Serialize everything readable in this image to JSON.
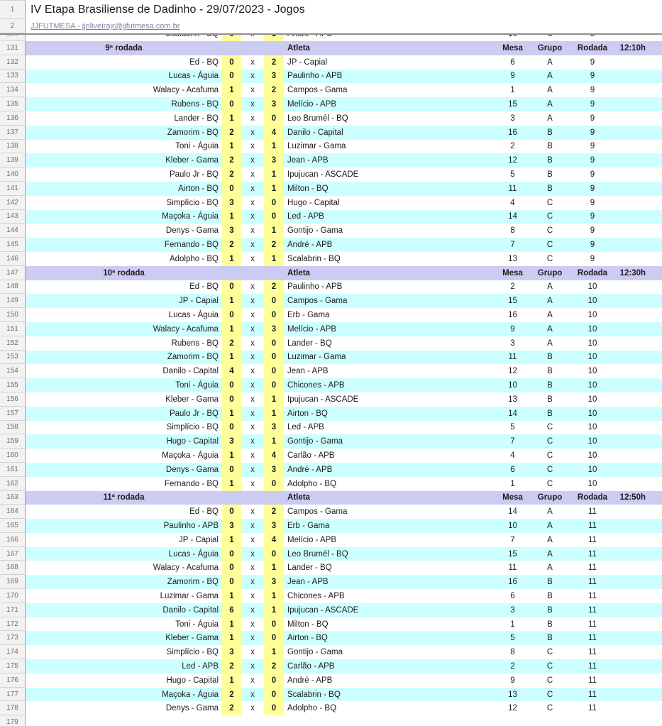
{
  "header": {
    "title": "IV Etapa Brasiliense de Dadinho - 29/07/2023 - Jogos",
    "link": "JJFUTMESA - jjoliveirajr@jjfutmesa.com.br",
    "row1_num": "1",
    "row2_num": "2"
  },
  "versus": "x",
  "col_headers": {
    "atleta": "Atleta",
    "mesa": "Mesa",
    "grupo": "Grupo",
    "rodada": "Rodada"
  },
  "partial_row": {
    "row": "130",
    "p1": "Scalabrin - BQ",
    "s1": "0",
    "s2": "1",
    "p2": "André - APB",
    "mesa": "10",
    "grupo": "C",
    "rodada": "8"
  },
  "last_row_num": "179",
  "colors": {
    "section_header_bg": "#ccccf2",
    "band_cyan": "#ccffff",
    "score_yellow": "#ffff99",
    "gutter_bg": "#f2f2f2",
    "link_text": "#7f7fa6"
  },
  "sections": [
    {
      "row_num": "131",
      "label": "9ª rodada",
      "time": "12:10h",
      "matches": [
        {
          "row": "132",
          "p1": "Ed - BQ",
          "s1": "0",
          "s2": "2",
          "p2": "JP - Capial",
          "mesa": "6",
          "grupo": "A",
          "rodada": "9"
        },
        {
          "row": "133",
          "p1": "Lucas - Águia",
          "s1": "0",
          "s2": "3",
          "p2": "Paulinho - APB",
          "mesa": "9",
          "grupo": "A",
          "rodada": "9"
        },
        {
          "row": "134",
          "p1": "Walacy - Acafuma",
          "s1": "1",
          "s2": "2",
          "p2": "Campos - Gama",
          "mesa": "1",
          "grupo": "A",
          "rodada": "9"
        },
        {
          "row": "135",
          "p1": "Rubens - BQ",
          "s1": "0",
          "s2": "3",
          "p2": "Melício - APB",
          "mesa": "15",
          "grupo": "A",
          "rodada": "9"
        },
        {
          "row": "136",
          "p1": "Lander - BQ",
          "s1": "1",
          "s2": "0",
          "p2": "Leo Brumél - BQ",
          "mesa": "3",
          "grupo": "A",
          "rodada": "9"
        },
        {
          "row": "137",
          "p1": "Zamorim - BQ",
          "s1": "2",
          "s2": "4",
          "p2": "Danilo - Capital",
          "mesa": "16",
          "grupo": "B",
          "rodada": "9"
        },
        {
          "row": "138",
          "p1": "Toni - Águia",
          "s1": "1",
          "s2": "1",
          "p2": "Luzimar - Gama",
          "mesa": "2",
          "grupo": "B",
          "rodada": "9"
        },
        {
          "row": "139",
          "p1": "Kleber - Gama",
          "s1": "2",
          "s2": "3",
          "p2": "Jean - APB",
          "mesa": "12",
          "grupo": "B",
          "rodada": "9"
        },
        {
          "row": "140",
          "p1": "Paulo Jr - BQ",
          "s1": "2",
          "s2": "1",
          "p2": "Ipujucan - ASCADE",
          "mesa": "5",
          "grupo": "B",
          "rodada": "9"
        },
        {
          "row": "141",
          "p1": "Airton - BQ",
          "s1": "0",
          "s2": "1",
          "p2": "Milton - BQ",
          "mesa": "11",
          "grupo": "B",
          "rodada": "9"
        },
        {
          "row": "142",
          "p1": "Simplício - BQ",
          "s1": "3",
          "s2": "0",
          "p2": "Hugo - Capital",
          "mesa": "4",
          "grupo": "C",
          "rodada": "9"
        },
        {
          "row": "143",
          "p1": "Maçoka - Águia",
          "s1": "1",
          "s2": "0",
          "p2": "Led - APB",
          "mesa": "14",
          "grupo": "C",
          "rodada": "9"
        },
        {
          "row": "144",
          "p1": "Denys - Gama",
          "s1": "3",
          "s2": "1",
          "p2": "Gontijo - Gama",
          "mesa": "8",
          "grupo": "C",
          "rodada": "9"
        },
        {
          "row": "145",
          "p1": "Fernando - BQ",
          "s1": "2",
          "s2": "2",
          "p2": "André - APB",
          "mesa": "7",
          "grupo": "C",
          "rodada": "9"
        },
        {
          "row": "146",
          "p1": "Adolpho - BQ",
          "s1": "1",
          "s2": "1",
          "p2": "Scalabrin - BQ",
          "mesa": "13",
          "grupo": "C",
          "rodada": "9"
        }
      ]
    },
    {
      "row_num": "147",
      "label": "10ª rodada",
      "time": "12:30h",
      "matches": [
        {
          "row": "148",
          "p1": "Ed - BQ",
          "s1": "0",
          "s2": "2",
          "p2": "Paulinho - APB",
          "mesa": "2",
          "grupo": "A",
          "rodada": "10"
        },
        {
          "row": "149",
          "p1": "JP - Capial",
          "s1": "1",
          "s2": "0",
          "p2": "Campos - Gama",
          "mesa": "15",
          "grupo": "A",
          "rodada": "10"
        },
        {
          "row": "150",
          "p1": "Lucas - Águia",
          "s1": "0",
          "s2": "0",
          "p2": "Erb - Gama",
          "mesa": "16",
          "grupo": "A",
          "rodada": "10"
        },
        {
          "row": "151",
          "p1": "Walacy - Acafuma",
          "s1": "1",
          "s2": "3",
          "p2": "Melício - APB",
          "mesa": "9",
          "grupo": "A",
          "rodada": "10"
        },
        {
          "row": "152",
          "p1": "Rubens - BQ",
          "s1": "2",
          "s2": "0",
          "p2": "Lander - BQ",
          "mesa": "3",
          "grupo": "A",
          "rodada": "10"
        },
        {
          "row": "153",
          "p1": "Zamorim - BQ",
          "s1": "1",
          "s2": "0",
          "p2": "Luzimar - Gama",
          "mesa": "11",
          "grupo": "B",
          "rodada": "10"
        },
        {
          "row": "154",
          "p1": "Danilo - Capital",
          "s1": "4",
          "s2": "0",
          "p2": "Jean - APB",
          "mesa": "12",
          "grupo": "B",
          "rodada": "10"
        },
        {
          "row": "155",
          "p1": "Toni - Águia",
          "s1": "0",
          "s2": "0",
          "p2": "Chicones - APB",
          "mesa": "10",
          "grupo": "B",
          "rodada": "10"
        },
        {
          "row": "156",
          "p1": "Kleber - Gama",
          "s1": "0",
          "s2": "1",
          "p2": "Ipujucan - ASCADE",
          "mesa": "13",
          "grupo": "B",
          "rodada": "10"
        },
        {
          "row": "157",
          "p1": "Paulo Jr - BQ",
          "s1": "1",
          "s2": "1",
          "p2": "Airton - BQ",
          "mesa": "14",
          "grupo": "B",
          "rodada": "10"
        },
        {
          "row": "158",
          "p1": "Simplício - BQ",
          "s1": "0",
          "s2": "3",
          "p2": "Led - APB",
          "mesa": "5",
          "grupo": "C",
          "rodada": "10"
        },
        {
          "row": "159",
          "p1": "Hugo - Capital",
          "s1": "3",
          "s2": "1",
          "p2": "Gontijo - Gama",
          "mesa": "7",
          "grupo": "C",
          "rodada": "10"
        },
        {
          "row": "160",
          "p1": "Maçoka - Águia",
          "s1": "1",
          "s2": "4",
          "p2": "Carlão - APB",
          "mesa": "4",
          "grupo": "C",
          "rodada": "10"
        },
        {
          "row": "161",
          "p1": "Denys - Gama",
          "s1": "0",
          "s2": "3",
          "p2": "André - APB",
          "mesa": "6",
          "grupo": "C",
          "rodada": "10"
        },
        {
          "row": "162",
          "p1": "Fernando - BQ",
          "s1": "1",
          "s2": "0",
          "p2": "Adolpho - BQ",
          "mesa": "1",
          "grupo": "C",
          "rodada": "10"
        }
      ]
    },
    {
      "row_num": "163",
      "label": "11ª rodada",
      "time": "12:50h",
      "matches": [
        {
          "row": "164",
          "p1": "Ed - BQ",
          "s1": "0",
          "s2": "2",
          "p2": "Campos - Gama",
          "mesa": "14",
          "grupo": "A",
          "rodada": "11"
        },
        {
          "row": "165",
          "p1": "Paulinho - APB",
          "s1": "3",
          "s2": "3",
          "p2": "Erb - Gama",
          "mesa": "10",
          "grupo": "A",
          "rodada": "11"
        },
        {
          "row": "166",
          "p1": "JP - Capial",
          "s1": "1",
          "s2": "4",
          "p2": "Melício - APB",
          "mesa": "7",
          "grupo": "A",
          "rodada": "11"
        },
        {
          "row": "167",
          "p1": "Lucas - Águia",
          "s1": "0",
          "s2": "0",
          "p2": "Leo Brumél - BQ",
          "mesa": "15",
          "grupo": "A",
          "rodada": "11"
        },
        {
          "row": "168",
          "p1": "Walacy - Acafuma",
          "s1": "0",
          "s2": "1",
          "p2": "Lander - BQ",
          "mesa": "11",
          "grupo": "A",
          "rodada": "11"
        },
        {
          "row": "169",
          "p1": "Zamorim - BQ",
          "s1": "0",
          "s2": "3",
          "p2": "Jean - APB",
          "mesa": "16",
          "grupo": "B",
          "rodada": "11"
        },
        {
          "row": "170",
          "p1": "Luzimar - Gama",
          "s1": "1",
          "s2": "1",
          "p2": "Chicones - APB",
          "mesa": "6",
          "grupo": "B",
          "rodada": "11"
        },
        {
          "row": "171",
          "p1": "Danilo - Capital",
          "s1": "6",
          "s2": "1",
          "p2": "Ipujucan - ASCADE",
          "mesa": "3",
          "grupo": "B",
          "rodada": "11"
        },
        {
          "row": "172",
          "p1": "Toni - Águia",
          "s1": "1",
          "s2": "0",
          "p2": "Milton - BQ",
          "mesa": "1",
          "grupo": "B",
          "rodada": "11"
        },
        {
          "row": "173",
          "p1": "Kleber - Gama",
          "s1": "1",
          "s2": "0",
          "p2": "Airton - BQ",
          "mesa": "5",
          "grupo": "B",
          "rodada": "11"
        },
        {
          "row": "174",
          "p1": "Simplício - BQ",
          "s1": "3",
          "s2": "1",
          "p2": "Gontijo - Gama",
          "mesa": "8",
          "grupo": "C",
          "rodada": "11"
        },
        {
          "row": "175",
          "p1": "Led - APB",
          "s1": "2",
          "s2": "2",
          "p2": "Carlão - APB",
          "mesa": "2",
          "grupo": "C",
          "rodada": "11"
        },
        {
          "row": "176",
          "p1": "Hugo - Capital",
          "s1": "1",
          "s2": "0",
          "p2": "André - APB",
          "mesa": "9",
          "grupo": "C",
          "rodada": "11"
        },
        {
          "row": "177",
          "p1": "Maçoka - Águia",
          "s1": "2",
          "s2": "0",
          "p2": "Scalabrin - BQ",
          "mesa": "13",
          "grupo": "C",
          "rodada": "11"
        },
        {
          "row": "178",
          "p1": "Denys - Gama",
          "s1": "2",
          "s2": "0",
          "p2": "Adolpho - BQ",
          "mesa": "12",
          "grupo": "C",
          "rodada": "11"
        }
      ]
    }
  ]
}
